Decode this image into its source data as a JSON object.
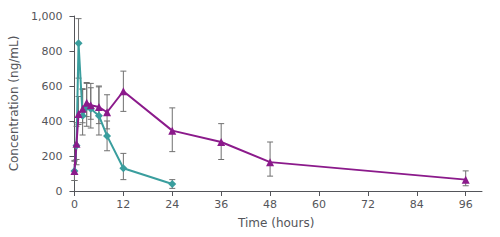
{
  "chart_data": {
    "type": "line",
    "xlabel": "Time (hours)",
    "ylabel": "Concentration (ng/mL)",
    "xlim": [
      -1,
      100
    ],
    "ylim": [
      0,
      1000
    ],
    "xticks": [
      0,
      12,
      24,
      36,
      48,
      60,
      72,
      84,
      96
    ],
    "yticks": [
      0,
      200,
      400,
      600,
      800,
      {
        "value": 1000,
        "label": "1,000"
      }
    ],
    "grid": false,
    "series": [
      {
        "color": "#3a9e9e",
        "marker": "diamond",
        "x": [
          0,
          0.5,
          1,
          2,
          3,
          4,
          6,
          8,
          12,
          24
        ],
        "values": [
          115,
          260,
          845,
          430,
          480,
          470,
          430,
          315,
          130,
          40
        ],
        "error_low": [
          55,
          110,
          200,
          110,
          110,
          110,
          110,
          85,
          65,
          25
        ],
        "error_high": [
          55,
          130,
          140,
          155,
          140,
          145,
          165,
          85,
          85,
          25
        ]
      },
      {
        "color": "#8b1a8b",
        "marker": "triangle",
        "x": [
          0,
          0.5,
          1,
          2,
          3,
          4,
          6,
          8,
          12,
          24,
          36,
          48,
          96
        ],
        "values": [
          115,
          270,
          440,
          470,
          505,
          490,
          480,
          450,
          570,
          345,
          280,
          165,
          65
        ],
        "error_low": [
          55,
          90,
          60,
          80,
          80,
          80,
          95,
          95,
          115,
          120,
          100,
          80,
          35
        ],
        "error_high": [
          60,
          100,
          100,
          110,
          110,
          100,
          120,
          100,
          115,
          130,
          105,
          115,
          50
        ]
      }
    ]
  }
}
